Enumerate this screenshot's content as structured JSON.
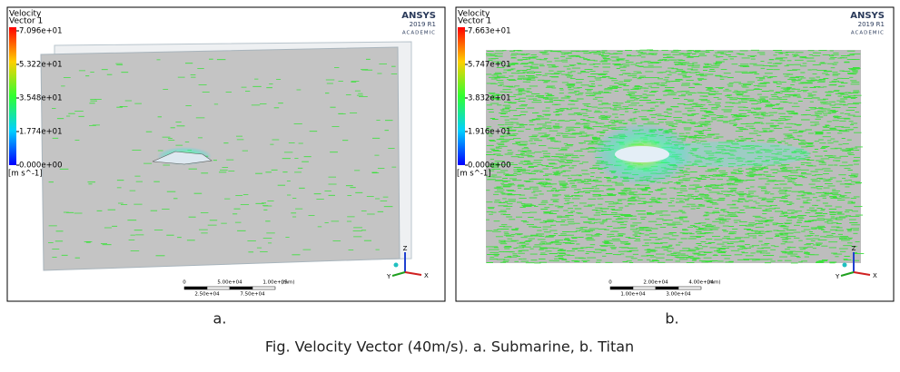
{
  "panels": [
    {
      "label": "a.",
      "legend": {
        "title": "Velocity",
        "subtitle": "Vector 1",
        "ticks": [
          "7.096e+01",
          "5.322e+01",
          "3.548e+01",
          "1.774e+01",
          "0.000e+00"
        ],
        "unit": "[m s^-1]"
      },
      "logo": {
        "name": "ANSYS",
        "version": "2019 R1",
        "edition": "ACADEMIC"
      },
      "scale": {
        "top": [
          "0",
          "5.00e+04",
          "1.00e+05",
          "(mm)"
        ],
        "bottom": [
          "2.50e+04",
          "7.50e+04"
        ]
      },
      "axes": [
        "Z",
        "Y",
        "X"
      ]
    },
    {
      "label": "b.",
      "legend": {
        "title": "Velocity",
        "subtitle": "Vector 1",
        "ticks": [
          "7.663e+01",
          "5.747e+01",
          "3.832e+01",
          "1.916e+01",
          "0.000e+00"
        ],
        "unit": "[m s^-1]"
      },
      "logo": {
        "name": "ANSYS",
        "version": "2019 R1",
        "edition": "ACADEMIC"
      },
      "scale": {
        "top": [
          "0",
          "2.00e+04",
          "4.00e+04",
          "(mm)"
        ],
        "bottom": [
          "1.00e+04",
          "3.00e+04"
        ]
      },
      "axes": [
        "Z",
        "Y",
        "X"
      ]
    }
  ],
  "caption": "Fig. Velocity Vector (40m/s). a. Submarine, b. Titan"
}
